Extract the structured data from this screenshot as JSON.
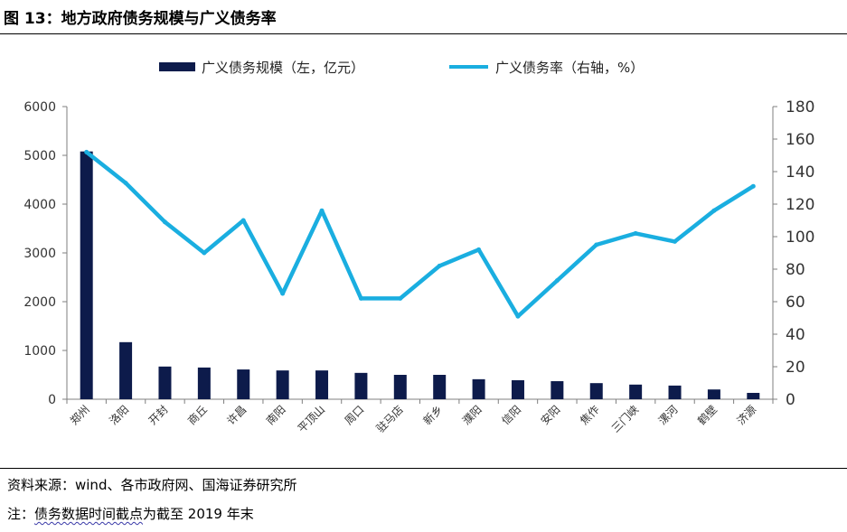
{
  "header": {
    "title": "图 13：地方政府债务规模与广义债务率"
  },
  "footer": {
    "source": "资料来源：wind、各市政府网、国海证券研究所",
    "note_prefix": "注：",
    "note_highlight": "债务数据时间截点",
    "note_suffix": "为截至 2019 年末"
  },
  "colors": {
    "bar": "#0d1b4b",
    "line": "#1aaee0",
    "axis": "#7f7f7f"
  },
  "chart_data": {
    "type": "bar+line",
    "categories": [
      "郑州",
      "洛阳",
      "开封",
      "商丘",
      "许昌",
      "南阳",
      "平顶山",
      "周口",
      "驻马店",
      "新乡",
      "濮阳",
      "信阳",
      "安阳",
      "焦作",
      "三门峡",
      "漯河",
      "鹤壁",
      "济源"
    ],
    "series": [
      {
        "name": "广义债务规模（左，亿元）",
        "type": "bar",
        "axis": "left",
        "values": [
          5080,
          1170,
          670,
          650,
          610,
          590,
          590,
          540,
          500,
          500,
          410,
          390,
          370,
          330,
          300,
          280,
          200,
          130
        ]
      },
      {
        "name": "广义债务率（右轴，%）",
        "type": "line",
        "axis": "right",
        "values": [
          152,
          133,
          109,
          90,
          110,
          65,
          116,
          62,
          62,
          82,
          92,
          51,
          73,
          95,
          102,
          97,
          116,
          131
        ]
      }
    ],
    "y_left": {
      "min": 0,
      "max": 6000,
      "ticks": [
        "0",
        "1000",
        "2000",
        "3000",
        "4000",
        "5000",
        "6000"
      ]
    },
    "y_right": {
      "min": 0,
      "max": 180,
      "ticks": [
        "0",
        "20",
        "40",
        "60",
        "80",
        "100",
        "120",
        "140",
        "160",
        "180"
      ]
    },
    "legend_position": "top-center",
    "grid": false
  }
}
